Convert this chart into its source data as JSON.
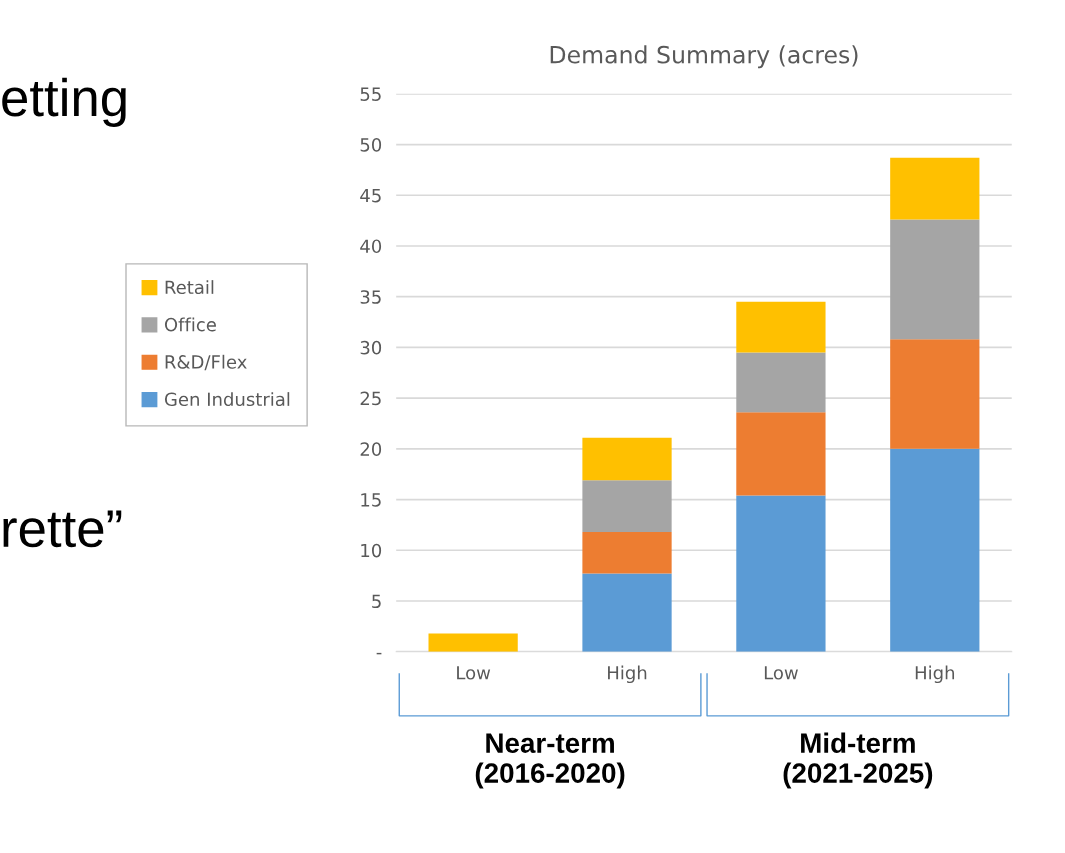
{
  "chart_data": {
    "type": "bar",
    "title": "Demand Summary (acres)",
    "stacked": true,
    "categories": [
      "Low",
      "High",
      "Low",
      "High"
    ],
    "series": [
      {
        "name": "Gen Industrial",
        "color": "#5b9bd5",
        "values": [
          0,
          7.7,
          15.4,
          20.0
        ]
      },
      {
        "name": "R&D/Flex",
        "color": "#ed7d31",
        "values": [
          0,
          4.1,
          8.2,
          10.8
        ]
      },
      {
        "name": "Office",
        "color": "#a5a5a5",
        "values": [
          0,
          5.1,
          5.9,
          11.8
        ]
      },
      {
        "name": "Retail",
        "color": "#ffc000",
        "values": [
          1.8,
          4.2,
          5.0,
          6.1
        ]
      }
    ],
    "ylim": [
      0,
      55
    ],
    "yticks": [
      {
        "value": 0,
        "label": "-"
      },
      5,
      10,
      15,
      20,
      25,
      30,
      35,
      40,
      45,
      50,
      55
    ],
    "grid": "y",
    "legend": "left",
    "annotations": [
      "Near-term\n(2016-2020)",
      "Mid-term\n(2021-2025)",
      "etting",
      "rette”"
    ]
  }
}
